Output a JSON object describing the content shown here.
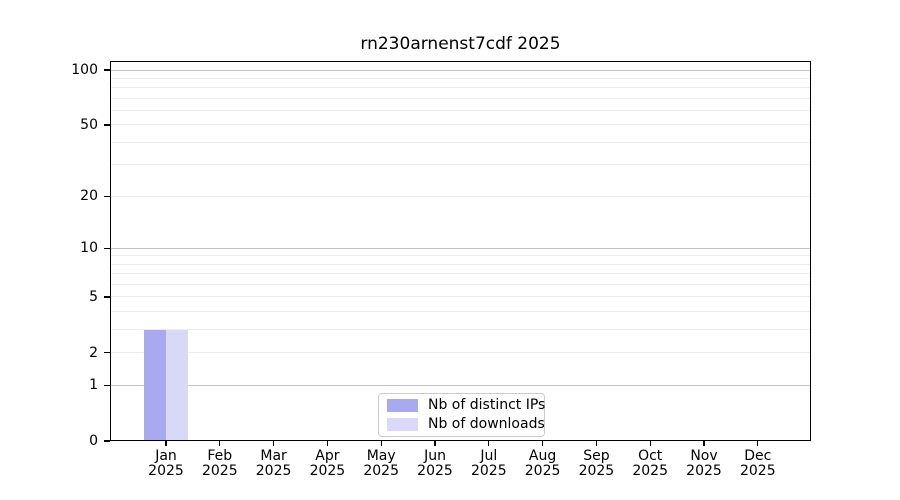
{
  "chart_data": {
    "type": "bar",
    "title": "rn230arnenst7cdf 2025",
    "categories": [
      "Jan",
      "Feb",
      "Mar",
      "Apr",
      "May",
      "Jun",
      "Jul",
      "Aug",
      "Sep",
      "Oct",
      "Nov",
      "Dec"
    ],
    "x_year": "2025",
    "series": [
      {
        "name": "Nb of distinct IPs",
        "color": "#a9a9ef",
        "values": [
          3,
          0,
          0,
          0,
          0,
          0,
          0,
          0,
          0,
          0,
          0,
          0
        ]
      },
      {
        "name": "Nb of downloads",
        "color": "#d9d9f7",
        "values": [
          3,
          0,
          0,
          0,
          0,
          0,
          0,
          0,
          0,
          0,
          0,
          0
        ]
      }
    ],
    "y_axis": {
      "scale": "log10(value+1)",
      "tick_values": [
        0,
        1,
        2,
        5,
        10,
        20,
        50,
        100
      ],
      "major_gridlines": [
        1,
        10,
        100
      ],
      "minor_gridlines": [
        2,
        3,
        4,
        5,
        6,
        7,
        8,
        9,
        20,
        30,
        40,
        50,
        60,
        70,
        80,
        90
      ],
      "ylim": [
        0,
        112
      ]
    },
    "legend": {
      "position": "lower center"
    },
    "colors": {
      "major_grid": "#c3c3c3",
      "minor_grid": "#ededed",
      "spine": "#000000",
      "text": "#000000"
    }
  }
}
